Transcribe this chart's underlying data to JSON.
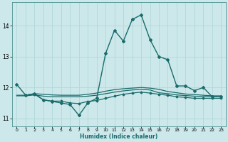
{
  "title": "",
  "xlabel": "Humidex (Indice chaleur)",
  "ylabel": "",
  "bg_color": "#cce8ea",
  "line_color": "#1a6b6b",
  "grid_color": "#b0d8da",
  "ylim": [
    10.75,
    14.75
  ],
  "xlim": [
    -0.5,
    23.5
  ],
  "yticks": [
    11,
    12,
    13,
    14
  ],
  "xticks": [
    0,
    1,
    2,
    3,
    4,
    5,
    6,
    7,
    8,
    9,
    10,
    11,
    12,
    13,
    14,
    15,
    16,
    17,
    18,
    19,
    20,
    21,
    22,
    23
  ],
  "series": [
    {
      "x": [
        0,
        1,
        2,
        3,
        4,
        5,
        6,
        7,
        8,
        9,
        10,
        11,
        12,
        13,
        14,
        15,
        16,
        17,
        18,
        19,
        20,
        21,
        22,
        23
      ],
      "y": [
        12.1,
        11.75,
        11.8,
        11.6,
        11.55,
        11.5,
        11.45,
        11.1,
        11.5,
        11.65,
        13.1,
        13.85,
        13.5,
        14.2,
        14.35,
        13.55,
        13.0,
        12.9,
        12.05,
        12.05,
        11.9,
        12.0,
        11.7,
        11.7
      ],
      "marker": "D",
      "markersize": 2.0,
      "linewidth": 1.0
    },
    {
      "x": [
        0,
        1,
        2,
        3,
        4,
        5,
        6,
        7,
        8,
        9,
        10,
        11,
        12,
        13,
        14,
        15,
        16,
        17,
        18,
        19,
        20,
        21,
        22,
        23
      ],
      "y": [
        11.75,
        11.75,
        11.8,
        11.78,
        11.76,
        11.75,
        11.75,
        11.75,
        11.78,
        11.82,
        11.88,
        11.93,
        11.96,
        11.98,
        12.0,
        11.98,
        11.94,
        11.87,
        11.83,
        11.79,
        11.77,
        11.75,
        11.73,
        11.73
      ],
      "marker": null,
      "markersize": 0,
      "linewidth": 0.9
    },
    {
      "x": [
        0,
        1,
        2,
        3,
        4,
        5,
        6,
        7,
        8,
        9,
        10,
        11,
        12,
        13,
        14,
        15,
        16,
        17,
        18,
        19,
        20,
        21,
        22,
        23
      ],
      "y": [
        11.73,
        11.73,
        11.76,
        11.72,
        11.7,
        11.7,
        11.7,
        11.7,
        11.72,
        11.75,
        11.8,
        11.85,
        11.89,
        11.92,
        11.94,
        11.92,
        11.83,
        11.8,
        11.76,
        11.74,
        11.72,
        11.71,
        11.7,
        11.7
      ],
      "marker": null,
      "markersize": 0,
      "linewidth": 0.9
    },
    {
      "x": [
        1,
        2,
        3,
        4,
        5,
        6,
        7,
        8,
        9,
        10,
        11,
        12,
        13,
        14,
        15,
        16,
        17,
        18,
        19,
        20,
        21,
        22,
        23
      ],
      "y": [
        11.75,
        11.78,
        11.6,
        11.56,
        11.56,
        11.5,
        11.48,
        11.55,
        11.58,
        11.65,
        11.72,
        11.78,
        11.82,
        11.85,
        11.82,
        11.78,
        11.75,
        11.7,
        11.68,
        11.65,
        11.65,
        11.65,
        11.65
      ],
      "marker": "D",
      "markersize": 1.5,
      "linewidth": 0.9
    }
  ]
}
